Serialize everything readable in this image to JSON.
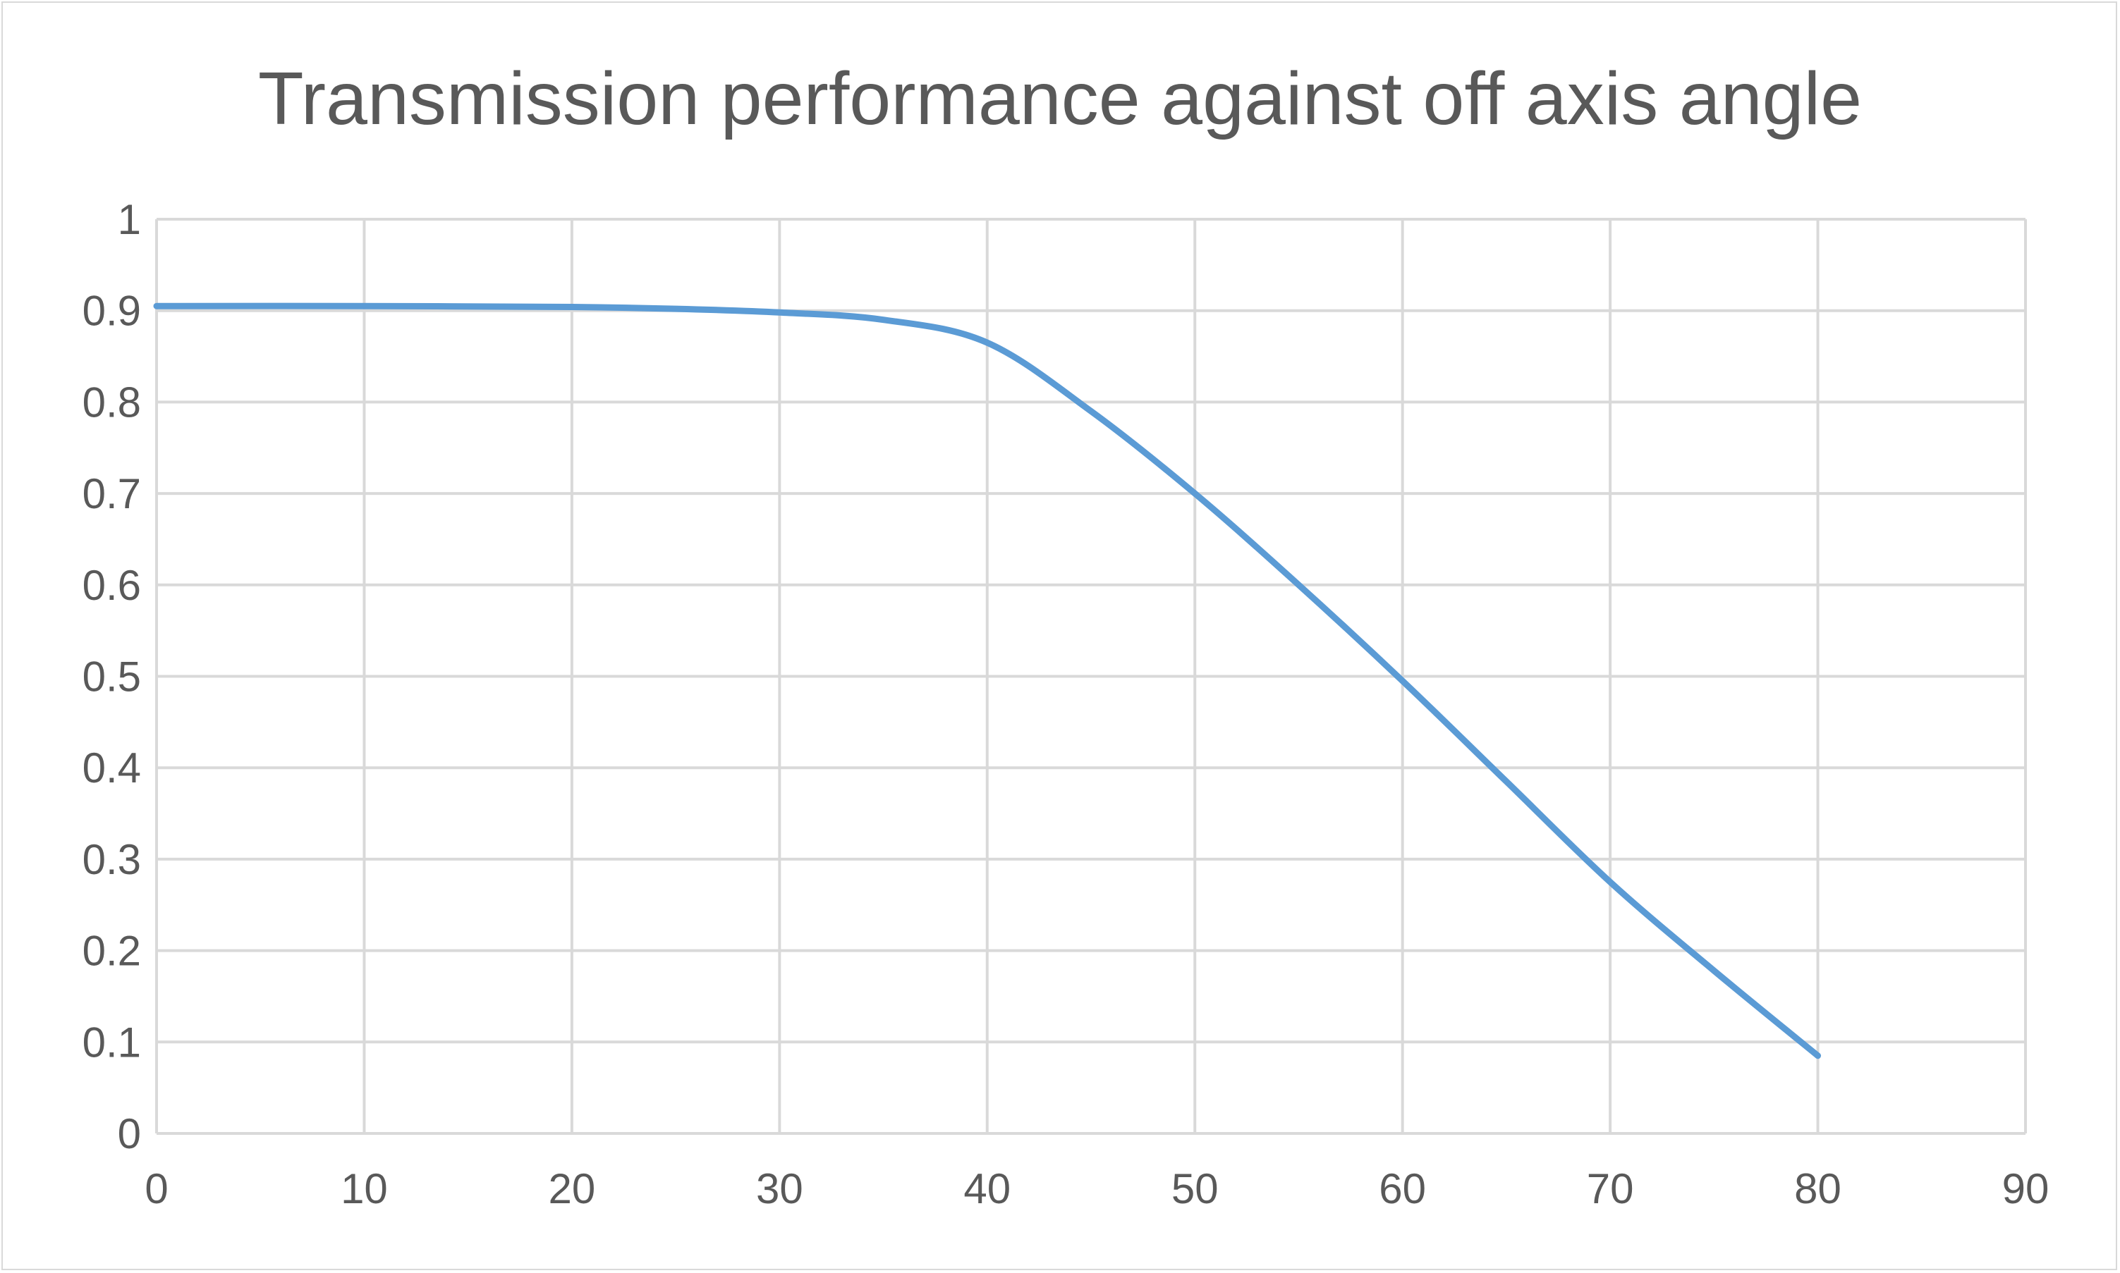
{
  "chart_data": {
    "type": "line",
    "title": "Transmission performance against off axis angle",
    "xlabel": "",
    "ylabel": "",
    "xlim": [
      0,
      90
    ],
    "ylim": [
      0,
      1
    ],
    "x_ticks": [
      "0",
      "10",
      "20",
      "30",
      "40",
      "50",
      "60",
      "70",
      "80",
      "90"
    ],
    "y_ticks": [
      "0",
      "0.1",
      "0.2",
      "0.3",
      "0.4",
      "0.5",
      "0.6",
      "0.7",
      "0.8",
      "0.9",
      "1"
    ],
    "grid": true,
    "legend": "none",
    "series": [
      {
        "color": "#5b9bd5",
        "x": [
          0,
          10,
          20,
          25,
          30,
          35,
          40,
          45,
          50,
          55,
          60,
          65,
          70,
          75,
          80
        ],
        "y": [
          0.905,
          0.905,
          0.904,
          0.902,
          0.898,
          0.89,
          0.865,
          0.79,
          0.7,
          0.6,
          0.495,
          0.385,
          0.275,
          0.178,
          0.085
        ]
      }
    ]
  }
}
